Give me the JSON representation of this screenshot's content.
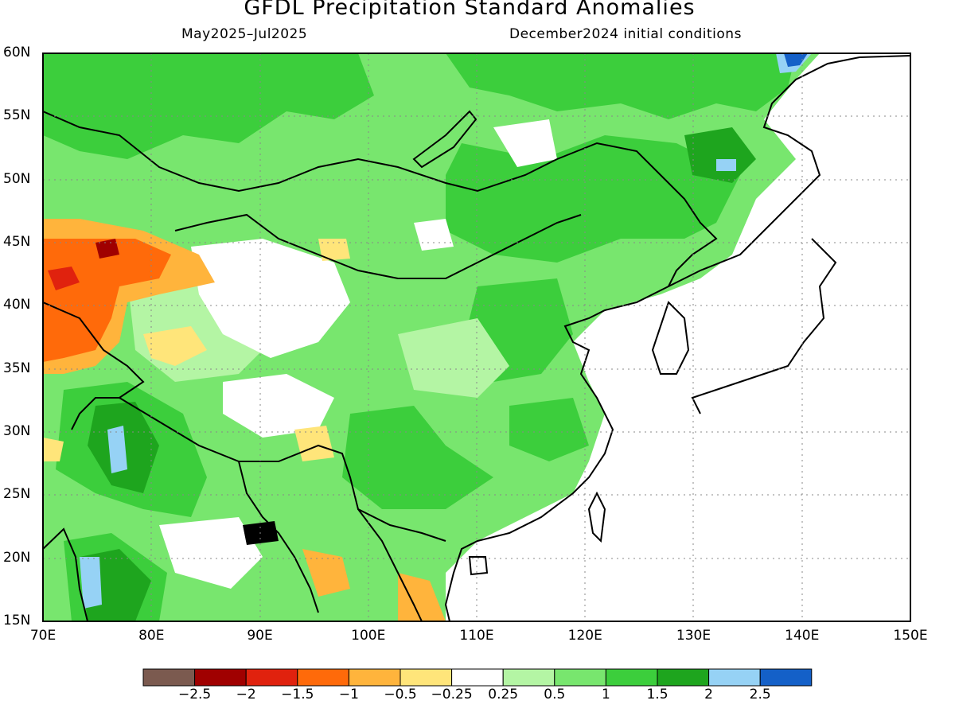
{
  "title": "GFDL Precipitation Standard Anomalies",
  "subtitle_left": "May2025–Jul2025",
  "subtitle_right": "December2024 initial conditions",
  "lat_labels": [
    "60N",
    "55N",
    "50N",
    "45N",
    "40N",
    "35N",
    "30N",
    "25N",
    "20N",
    "15N"
  ],
  "lon_labels": [
    "70E",
    "80E",
    "90E",
    "100E",
    "110E",
    "120E",
    "130E",
    "140E",
    "150E"
  ],
  "colorbar": {
    "colors": [
      "#7b5a4f",
      "#a00000",
      "#e0220e",
      "#ff6a0a",
      "#ffb43c",
      "#ffe57a",
      "#ffffff",
      "#b4f5a4",
      "#78e66e",
      "#3cce3c",
      "#1ea51e",
      "#96d2f5",
      "#1460c8"
    ],
    "labels": [
      "−2.5",
      "−2",
      "−1.5",
      "−1",
      "−0.5",
      "−0.25",
      "0.25",
      "0.5",
      "1",
      "1.5",
      "2",
      "2.5"
    ]
  }
}
